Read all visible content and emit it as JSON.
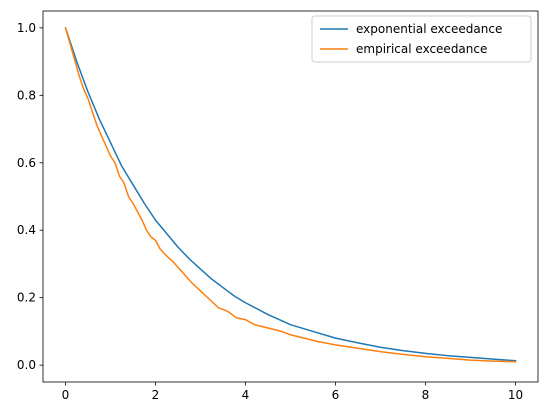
{
  "chart_data": {
    "type": "line",
    "xlim": [
      -0.5,
      10.5
    ],
    "ylim": [
      -0.05,
      1.05
    ],
    "xticks": [
      0,
      2,
      4,
      6,
      8,
      10
    ],
    "xtick_labels": [
      "0",
      "2",
      "4",
      "6",
      "8",
      "10"
    ],
    "yticks": [
      0.0,
      0.2,
      0.4,
      0.6,
      0.8,
      1.0
    ],
    "ytick_labels": [
      "0.0",
      "0.2",
      "0.4",
      "0.6",
      "0.8",
      "1.0"
    ],
    "grid": false,
    "legend_position": "top-right",
    "series": [
      {
        "name": "exponential exceedance",
        "color": "#1f77b4",
        "x": [
          0,
          0.25,
          0.5,
          0.75,
          1,
          1.25,
          1.5,
          1.75,
          2,
          2.25,
          2.5,
          2.75,
          3,
          3.25,
          3.5,
          3.75,
          4,
          4.5,
          5,
          5.5,
          6,
          6.5,
          7,
          7.5,
          8,
          8.5,
          9,
          9.5,
          10
        ],
        "y": [
          1.0,
          0.9,
          0.81,
          0.73,
          0.66,
          0.59,
          0.535,
          0.48,
          0.43,
          0.39,
          0.35,
          0.315,
          0.285,
          0.255,
          0.23,
          0.205,
          0.185,
          0.15,
          0.12,
          0.1,
          0.08,
          0.066,
          0.053,
          0.043,
          0.035,
          0.028,
          0.023,
          0.018,
          0.013
        ]
      },
      {
        "name": "empirical exceedance",
        "color": "#ff7f0e",
        "x": [
          0,
          0.15,
          0.3,
          0.4,
          0.5,
          0.6,
          0.7,
          0.8,
          0.9,
          1.0,
          1.1,
          1.2,
          1.3,
          1.4,
          1.5,
          1.6,
          1.7,
          1.8,
          1.9,
          2.0,
          2.1,
          2.2,
          2.4,
          2.6,
          2.8,
          3.0,
          3.2,
          3.4,
          3.6,
          3.8,
          4.0,
          4.2,
          4.5,
          4.8,
          5.0,
          5.3,
          5.6,
          6.0,
          6.5,
          7.0,
          7.5,
          8.0,
          8.5,
          9.0,
          9.5,
          10.0
        ],
        "y": [
          1.0,
          0.93,
          0.86,
          0.82,
          0.79,
          0.75,
          0.71,
          0.68,
          0.65,
          0.62,
          0.6,
          0.56,
          0.54,
          0.5,
          0.48,
          0.455,
          0.43,
          0.4,
          0.38,
          0.37,
          0.345,
          0.33,
          0.305,
          0.275,
          0.245,
          0.22,
          0.195,
          0.17,
          0.16,
          0.14,
          0.135,
          0.12,
          0.11,
          0.1,
          0.09,
          0.08,
          0.07,
          0.06,
          0.05,
          0.04,
          0.032,
          0.025,
          0.02,
          0.015,
          0.012,
          0.01
        ]
      }
    ]
  }
}
